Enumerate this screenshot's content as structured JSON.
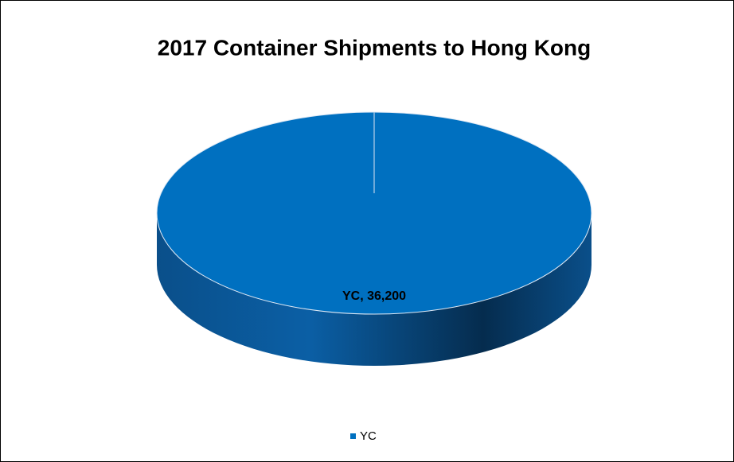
{
  "chart_data": {
    "type": "pie",
    "title": "2017 Container Shipments to Hong Kong",
    "categories": [
      "YC"
    ],
    "values": [
      36200
    ],
    "value_labels": [
      "YC, 36,200"
    ],
    "colors": [
      "#0070c0"
    ],
    "legend": "bottom"
  }
}
